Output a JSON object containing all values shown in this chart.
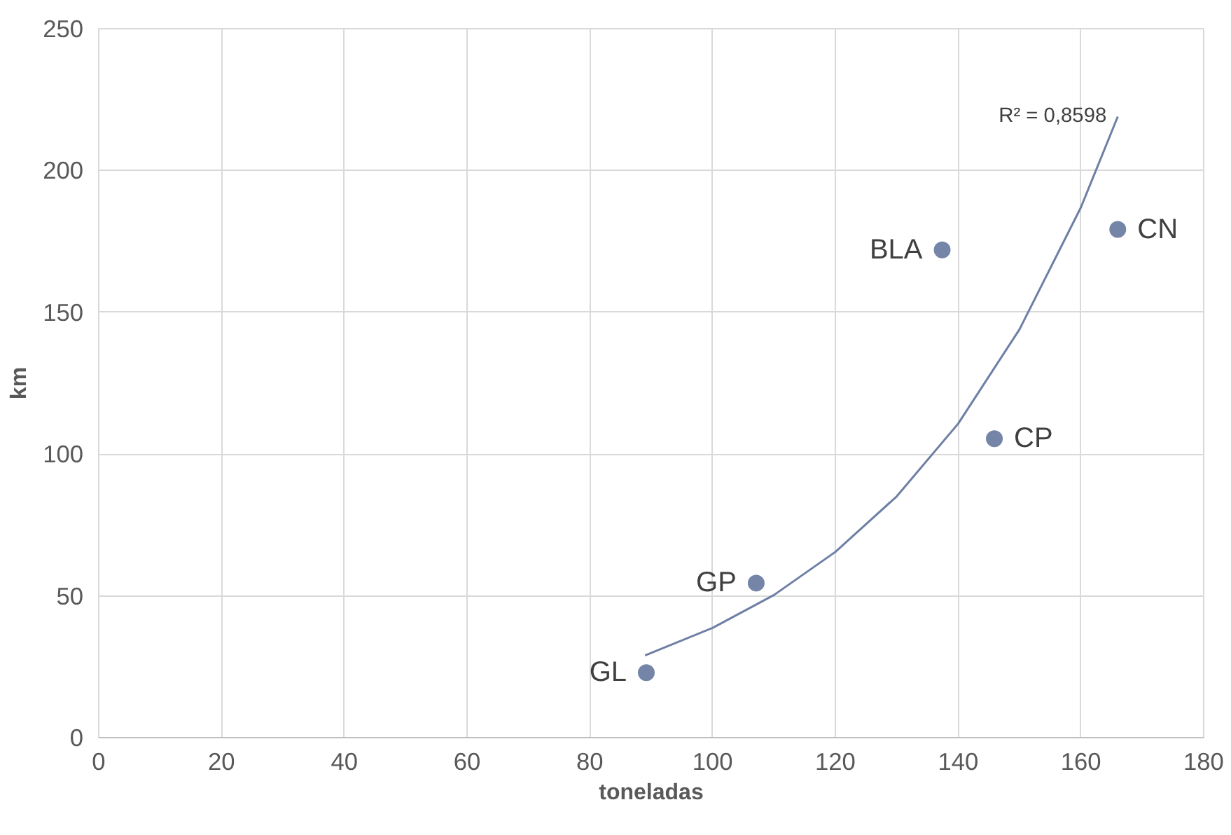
{
  "chart_data": {
    "type": "scatter",
    "xlabel": "toneladas",
    "ylabel": "km",
    "xlim": [
      0,
      180
    ],
    "xticks": [
      0,
      20,
      40,
      60,
      80,
      100,
      120,
      140,
      160,
      180
    ],
    "ylim": [
      0,
      250
    ],
    "yticks": [
      0,
      50,
      100,
      150,
      200,
      250
    ],
    "grid": true,
    "marker": "circle",
    "series": [
      {
        "color": "#7585a8",
        "x": [
          89.2,
          107.1,
          137.4,
          145.9,
          166.0
        ],
        "values": [
          22.9,
          54.5,
          172,
          105.4,
          179.2
        ]
      },
      {
        "type": "line",
        "color": "#6e7fa5",
        "x": [
          89,
          100,
          110,
          120,
          130,
          140,
          150,
          160,
          166
        ],
        "values": [
          29,
          38.7,
          50.3,
          65.5,
          85.1,
          110.7,
          144,
          187,
          219
        ],
        "marker": "none",
        "line_style": "solid"
      }
    ],
    "annotations": [
      {
        "text": "R² = 0,8598",
        "x": 166,
        "y": 219
      },
      {
        "text": "GL",
        "x": 89.2,
        "y": 22.9
      },
      {
        "text": "GP",
        "x": 107.1,
        "y": 54.5
      },
      {
        "text": "BLA",
        "x": 137.4,
        "y": 172
      },
      {
        "text": "CP",
        "x": 145.9,
        "y": 105.4
      },
      {
        "text": "CN",
        "x": 166.0,
        "y": 179.2
      }
    ]
  }
}
